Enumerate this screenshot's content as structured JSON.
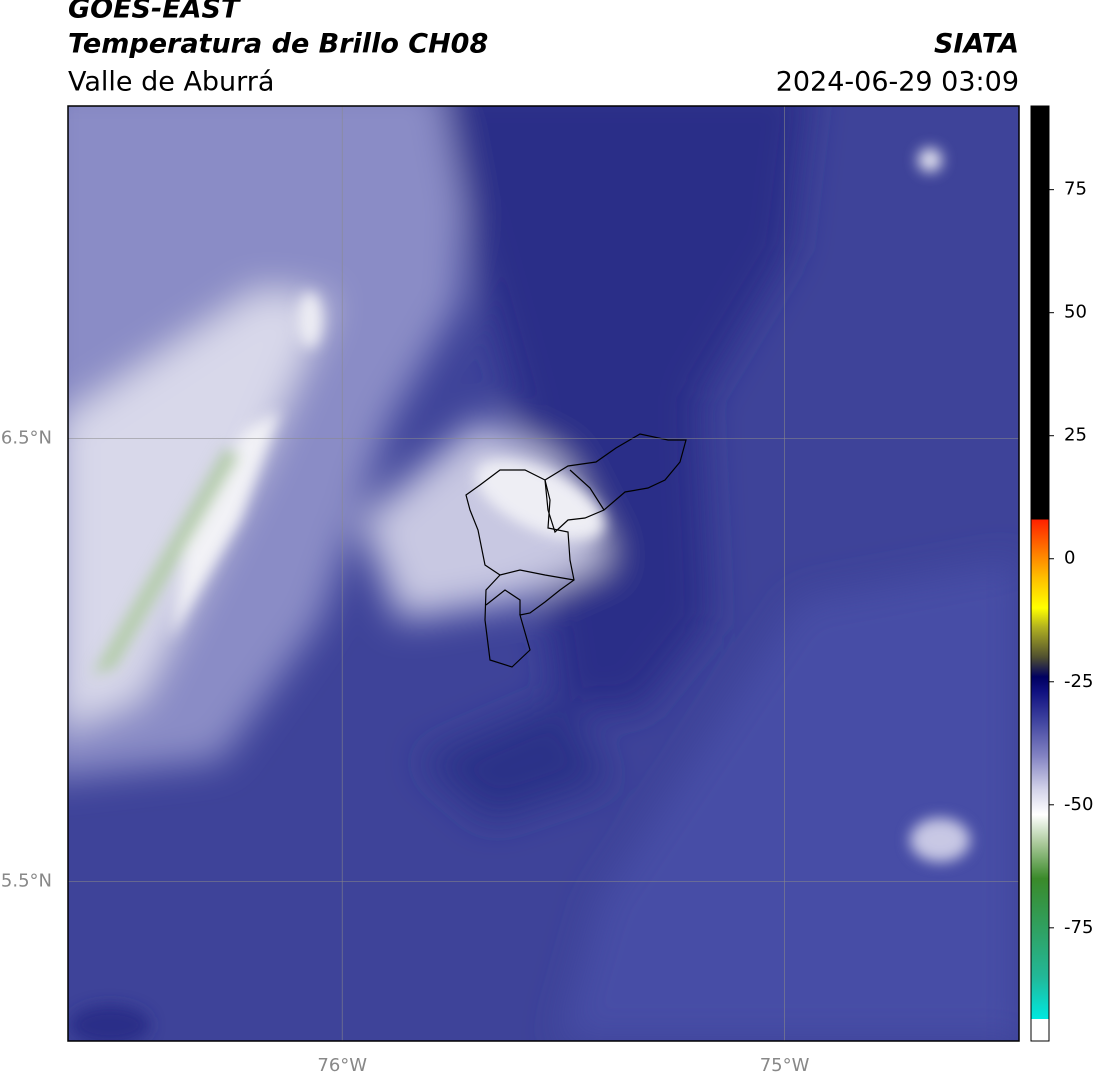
{
  "header": {
    "title": "GOES-EAST",
    "subtitle": "Temperatura de Brillo CH08",
    "source": "SIATA",
    "region": "Valle de Aburrá",
    "datetime": "2024-06-29 03:09"
  },
  "map": {
    "xlim": [
      -76.62,
      -74.47
    ],
    "ylim": [
      5.14,
      7.25
    ],
    "grid": true,
    "xticks": [
      {
        "value": -76,
        "label": "76°W"
      },
      {
        "value": -75,
        "label": "75°W"
      }
    ],
    "yticks": [
      {
        "value": 5.5,
        "label": "5.5°N"
      },
      {
        "value": 6.5,
        "label": "6.5°N"
      }
    ]
  },
  "colorbar": {
    "lim": [
      -98,
      92
    ],
    "ticks": [
      -75,
      -50,
      -25,
      0,
      25,
      50,
      75
    ],
    "stops": [
      {
        "value": -98,
        "color": "#ffffff"
      },
      {
        "value": -93.5,
        "color": "#ffffff"
      },
      {
        "value": -93.5,
        "color": "#00e8e0"
      },
      {
        "value": -85,
        "color": "#22b898"
      },
      {
        "value": -75,
        "color": "#30a060"
      },
      {
        "value": -65,
        "color": "#3a8a2a"
      },
      {
        "value": -58,
        "color": "#a8c898"
      },
      {
        "value": -52,
        "color": "#ffffff"
      },
      {
        "value": -47,
        "color": "#d4d4ea"
      },
      {
        "value": -40,
        "color": "#8282c2"
      },
      {
        "value": -33,
        "color": "#4044a0"
      },
      {
        "value": -27,
        "color": "#101080"
      },
      {
        "value": -24,
        "color": "#000060"
      },
      {
        "value": -20,
        "color": "#505030"
      },
      {
        "value": -14,
        "color": "#b0b020"
      },
      {
        "value": -10,
        "color": "#ffff00"
      },
      {
        "value": -4,
        "color": "#ffc000"
      },
      {
        "value": 1,
        "color": "#ff8000"
      },
      {
        "value": 8,
        "color": "#ff2000"
      },
      {
        "value": 8,
        "color": "#000000"
      },
      {
        "value": 92,
        "color": "#000000"
      }
    ]
  }
}
